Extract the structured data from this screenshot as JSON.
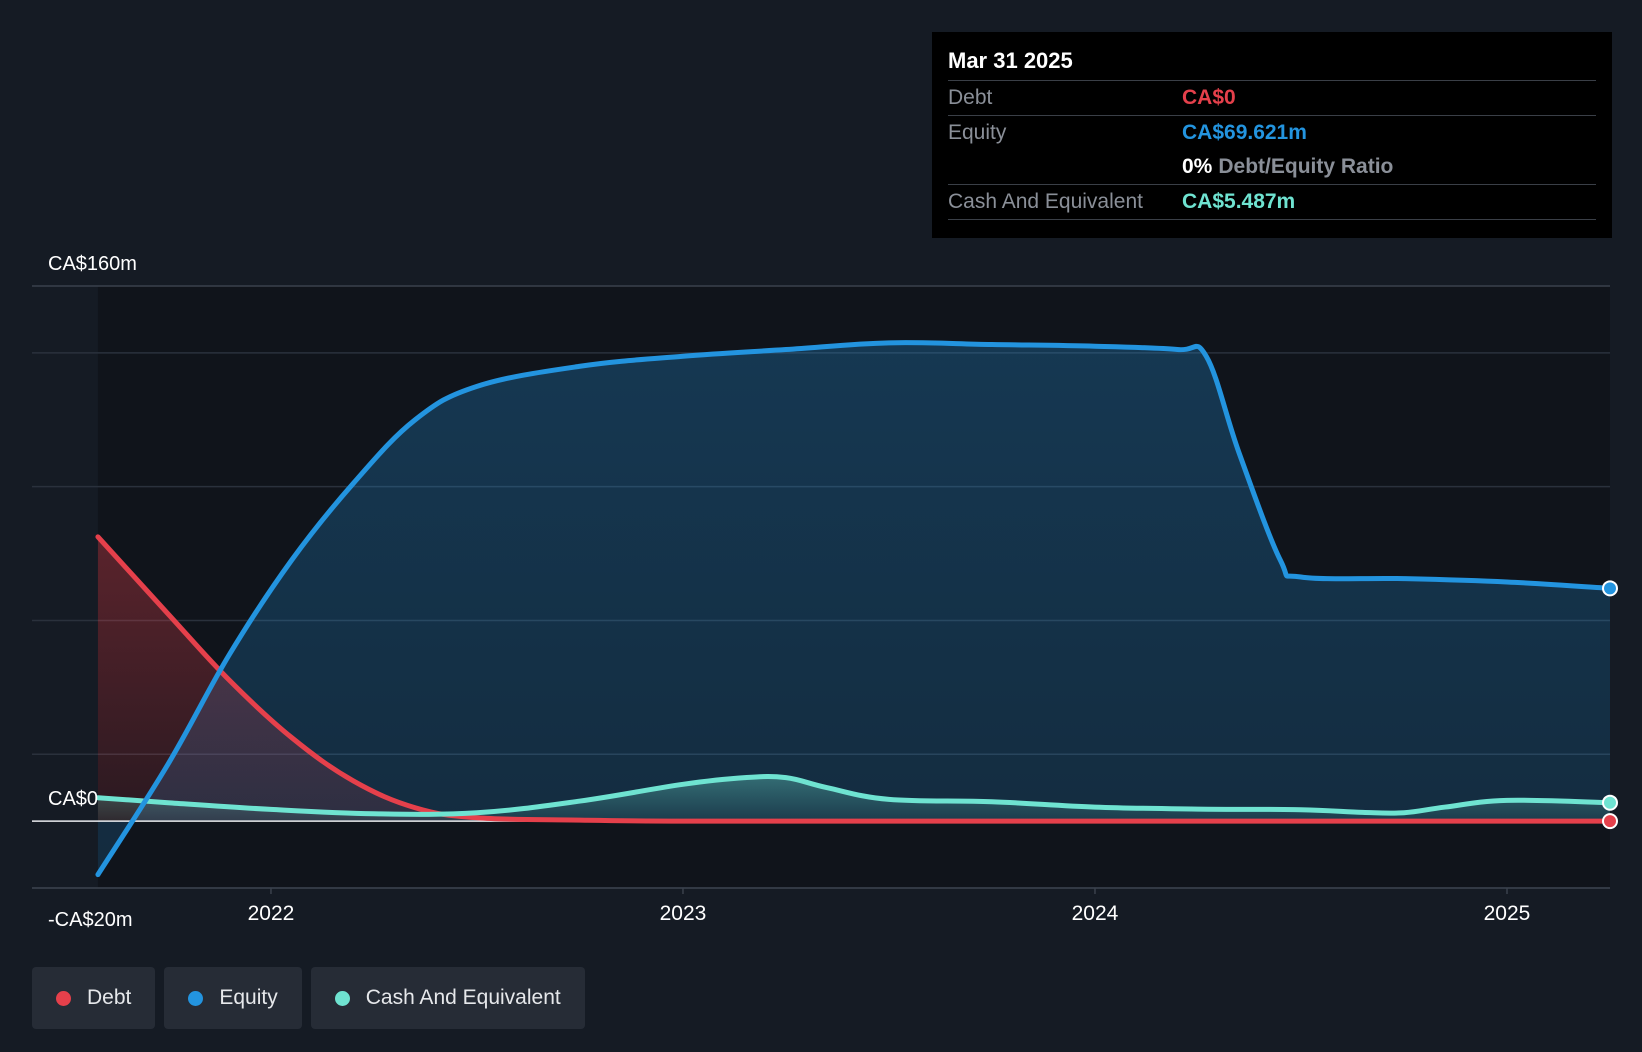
{
  "colors": {
    "debt": "#e5404b",
    "equity": "#2394df",
    "cash": "#6fe3d1",
    "background": "#151b24",
    "plot_future": "#10141b"
  },
  "tooltip": {
    "date": "Mar 31 2025",
    "debt_label": "Debt",
    "debt_value": "CA$0",
    "equity_label": "Equity",
    "equity_value": "CA$69.621m",
    "ratio_value": "0%",
    "ratio_label": "Debt/Equity Ratio",
    "cash_label": "Cash And Equivalent",
    "cash_value": "CA$5.487m"
  },
  "legend": [
    {
      "key": "debt",
      "label": "Debt",
      "icon": "debt-dot-icon"
    },
    {
      "key": "equity",
      "label": "Equity",
      "icon": "equity-dot-icon"
    },
    {
      "key": "cash",
      "label": "Cash And Equivalent",
      "icon": "cash-dot-icon"
    }
  ],
  "chart_data": {
    "type": "area",
    "y_tick_labels": [
      {
        "value": 160,
        "label": "CA$160m"
      },
      {
        "value": 0,
        "label": "CA$0"
      },
      {
        "value": -20,
        "label": "-CA$20m"
      }
    ],
    "x_tick_labels": [
      {
        "value": 2022,
        "label": "2022"
      },
      {
        "value": 2023,
        "label": "2023"
      },
      {
        "value": 2024,
        "label": "2024"
      },
      {
        "value": 2025,
        "label": "2025"
      }
    ],
    "ylim": [
      -20,
      160
    ],
    "xlim": [
      2021.42,
      2025.25
    ],
    "grid": true,
    "legend_position": "bottom-left",
    "series": [
      {
        "name": "Debt",
        "key": "debt",
        "x": [
          2021.58,
          2021.75,
          2021.9,
          2022.05,
          2022.2,
          2022.35,
          2022.5,
          2022.75,
          2023.0,
          2023.5,
          2024.0,
          2024.5,
          2025.0,
          2025.25
        ],
        "y": [
          85,
          62,
          42,
          25,
          12,
          4,
          1,
          0.3,
          0,
          0,
          0,
          0,
          0,
          0
        ]
      },
      {
        "name": "Equity",
        "key": "equity",
        "x": [
          2021.58,
          2021.75,
          2021.9,
          2022.05,
          2022.2,
          2022.35,
          2022.5,
          2022.75,
          2023.0,
          2023.25,
          2023.5,
          2023.75,
          2024.0,
          2024.2,
          2024.27,
          2024.35,
          2024.45,
          2024.5,
          2024.75,
          2025.0,
          2025.25
        ],
        "y": [
          -16,
          17,
          50,
          78,
          101,
          120,
          130,
          136,
          139,
          141,
          143,
          142.5,
          142,
          141,
          139,
          110,
          78,
          73,
          72.5,
          71.5,
          69.6
        ]
      },
      {
        "name": "Cash And Equivalent",
        "key": "cash",
        "x": [
          2021.58,
          2021.75,
          2022.0,
          2022.25,
          2022.5,
          2022.75,
          2023.0,
          2023.15,
          2023.25,
          2023.35,
          2023.5,
          2023.75,
          2024.0,
          2024.25,
          2024.5,
          2024.65,
          2024.75,
          2024.85,
          2025.0,
          2025.25
        ],
        "y": [
          7,
          5.5,
          3.5,
          2.2,
          2.5,
          6,
          11,
          13,
          13,
          10,
          6.5,
          5.8,
          4.2,
          3.6,
          3.4,
          2.6,
          2.5,
          4.2,
          6.2,
          5.5
        ]
      }
    ]
  }
}
